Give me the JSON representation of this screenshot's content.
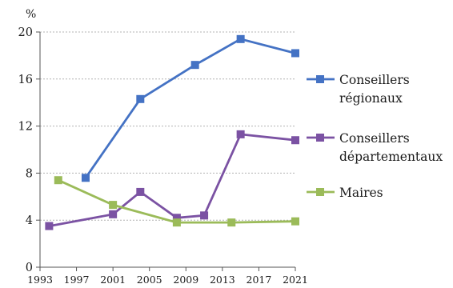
{
  "chart_data": {
    "type": "line",
    "title": "",
    "xlabel": "",
    "ylabel": "%",
    "ylim": [
      0,
      20
    ],
    "xlim": [
      1993,
      2021
    ],
    "x_ticks": [
      1993,
      1997,
      2001,
      2005,
      2009,
      2013,
      2017,
      2021
    ],
    "y_ticks": [
      0,
      4,
      8,
      12,
      16,
      20
    ],
    "grid": "horizontal dotted",
    "legend_position": "right",
    "series": [
      {
        "name": "Conseillers régionaux",
        "legend_lines": [
          "Conseillers",
          "régionaux"
        ],
        "color": "#4472c4",
        "marker": "square",
        "points": [
          {
            "x": 1998,
            "y": 7.6
          },
          {
            "x": 2004,
            "y": 14.3
          },
          {
            "x": 2010,
            "y": 17.2
          },
          {
            "x": 2015,
            "y": 19.4
          },
          {
            "x": 2021,
            "y": 18.2
          }
        ]
      },
      {
        "name": "Conseillers départementaux",
        "legend_lines": [
          "Conseillers",
          "départementaux"
        ],
        "color": "#7b52a3",
        "marker": "square",
        "points": [
          {
            "x": 1994,
            "y": 3.5
          },
          {
            "x": 2001,
            "y": 4.5
          },
          {
            "x": 2004,
            "y": 6.4
          },
          {
            "x": 2008,
            "y": 4.2
          },
          {
            "x": 2011,
            "y": 4.4
          },
          {
            "x": 2015,
            "y": 11.3
          },
          {
            "x": 2021,
            "y": 10.8
          }
        ]
      },
      {
        "name": "Maires",
        "legend_lines": [
          "Maires"
        ],
        "color": "#9bbb59",
        "marker": "square",
        "points": [
          {
            "x": 1995,
            "y": 7.4
          },
          {
            "x": 2001,
            "y": 5.3
          },
          {
            "x": 2008,
            "y": 3.8
          },
          {
            "x": 2014,
            "y": 3.8
          },
          {
            "x": 2021,
            "y": 3.9
          }
        ]
      }
    ]
  }
}
